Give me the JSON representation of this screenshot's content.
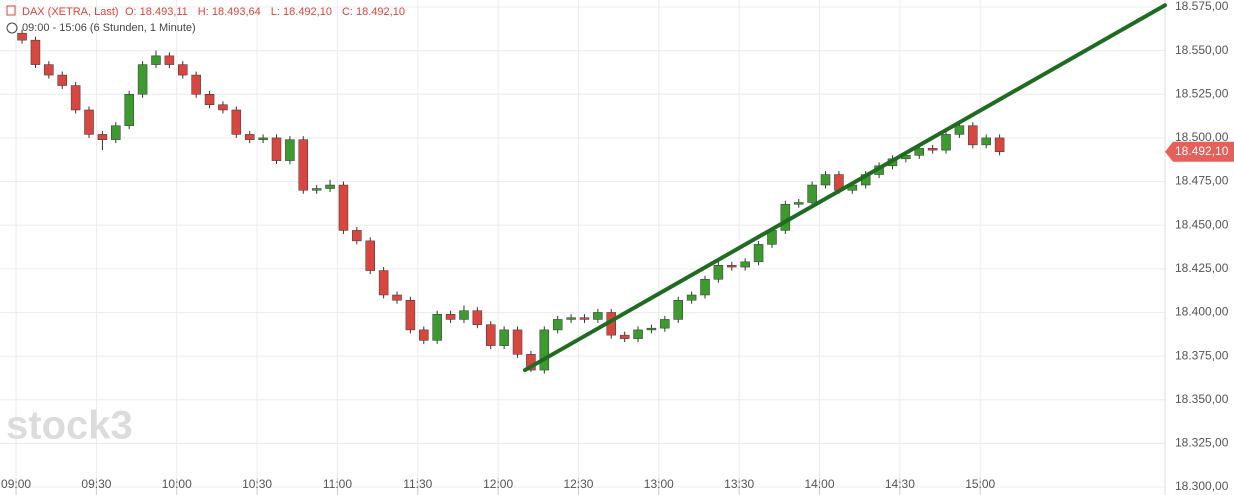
{
  "chart_data": {
    "type": "candlestick",
    "title": "DAX (XETRA, Last)",
    "ohlc_header": [
      "O: 18.493,11",
      "H: 18.493,64",
      "L: 18.492,10",
      "C: 18.492,10"
    ],
    "subtitle": "09:00 - 15:06  (6 Stunden, 1 Minute)",
    "watermark": "stock3",
    "up_color": "#3c9a2e",
    "down_color": "#d8473f",
    "x": [
      "09:00",
      "09:05",
      "09:10",
      "09:15",
      "09:20",
      "09:25",
      "09:30",
      "09:35",
      "09:40",
      "09:45",
      "09:50",
      "09:55",
      "10:00",
      "10:05",
      "10:10",
      "10:15",
      "10:20",
      "10:25",
      "10:30",
      "10:35",
      "10:40",
      "10:45",
      "10:50",
      "10:55",
      "11:00",
      "11:05",
      "11:10",
      "11:15",
      "11:20",
      "11:25",
      "11:30",
      "11:35",
      "11:40",
      "11:45",
      "11:50",
      "11:55",
      "12:00",
      "12:05",
      "12:10",
      "12:15",
      "12:20",
      "12:25",
      "12:30",
      "12:35",
      "12:40",
      "12:45",
      "12:50",
      "12:55",
      "13:00",
      "13:05",
      "13:10",
      "13:15",
      "13:20",
      "13:25",
      "13:30",
      "13:35",
      "13:40",
      "13:45",
      "13:50",
      "13:55",
      "14:00",
      "14:05",
      "14:10",
      "14:15",
      "14:20",
      "14:25",
      "14:30",
      "14:35",
      "14:40",
      "14:45",
      "14:50",
      "14:55",
      "15:00",
      "15:05"
    ],
    "open": [
      18560,
      18556,
      18542,
      18536,
      18530,
      18516,
      18502,
      18499,
      18507,
      18525,
      18542,
      18547,
      18542,
      18536,
      18525,
      18519,
      18516,
      18502,
      18499,
      18500,
      18487,
      18499,
      18470,
      18471,
      18473,
      18447,
      18441,
      18424,
      18410,
      18407,
      18390,
      18384,
      18399,
      18396,
      18401,
      18393,
      18381,
      18390,
      18376,
      18367,
      18390,
      18396,
      18397,
      18396,
      18400,
      18387,
      18385,
      18390,
      18391,
      18396,
      18407,
      18410,
      18419,
      18427,
      18426,
      18429,
      18439,
      18447,
      18462,
      18463,
      18473,
      18479,
      18470,
      18473,
      18479,
      18484,
      18488,
      18490,
      18494,
      18493,
      18502,
      18507,
      18496,
      18500
    ],
    "high": [
      18562,
      18558,
      18544,
      18538,
      18532,
      18518,
      18504,
      18509,
      18527,
      18544,
      18550,
      18549,
      18544,
      18538,
      18527,
      18521,
      18518,
      18504,
      18502,
      18502,
      18501,
      18501,
      18473,
      18476,
      18475,
      18449,
      18443,
      18426,
      18412,
      18409,
      18392,
      18401,
      18401,
      18404,
      18403,
      18395,
      18392,
      18392,
      18378,
      18392,
      18398,
      18399,
      18399,
      18402,
      18402,
      18389,
      18392,
      18393,
      18398,
      18409,
      18412,
      18421,
      18429,
      18429,
      18431,
      18441,
      18449,
      18464,
      18465,
      18475,
      18481,
      18481,
      18475,
      18481,
      18486,
      18490,
      18492,
      18496,
      18496,
      18504,
      18510,
      18509,
      18502,
      18502
    ],
    "low": [
      18554,
      18540,
      18534,
      18528,
      18514,
      18500,
      18493,
      18497,
      18505,
      18523,
      18540,
      18540,
      18534,
      18523,
      18517,
      18514,
      18500,
      18497,
      18497,
      18485,
      18485,
      18468,
      18468,
      18469,
      18445,
      18439,
      18422,
      18408,
      18405,
      18388,
      18382,
      18382,
      18394,
      18394,
      18391,
      18379,
      18379,
      18374,
      18366,
      18365,
      18388,
      18394,
      18394,
      18394,
      18385,
      18383,
      18383,
      18388,
      18389,
      18394,
      18405,
      18408,
      18417,
      18424,
      18424,
      18427,
      18437,
      18445,
      18460,
      18461,
      18471,
      18468,
      18468,
      18471,
      18477,
      18482,
      18486,
      18488,
      18491,
      18491,
      18500,
      18494,
      18494,
      18490
    ],
    "close": [
      18556,
      18542,
      18536,
      18530,
      18516,
      18502,
      18499,
      18507,
      18525,
      18542,
      18547,
      18542,
      18536,
      18525,
      18519,
      18516,
      18502,
      18499,
      18500,
      18487,
      18499,
      18470,
      18471,
      18473,
      18447,
      18441,
      18424,
      18410,
      18407,
      18390,
      18384,
      18399,
      18396,
      18401,
      18393,
      18381,
      18390,
      18376,
      18367,
      18390,
      18396,
      18397,
      18396,
      18400,
      18387,
      18385,
      18390,
      18391,
      18396,
      18407,
      18410,
      18419,
      18427,
      18426,
      18429,
      18439,
      18447,
      18462,
      18463,
      18473,
      18479,
      18470,
      18473,
      18479,
      18484,
      18488,
      18490,
      18494,
      18493,
      18502,
      18507,
      18496,
      18500,
      18492.1
    ],
    "trendline": {
      "color": "#1f6b22",
      "x": [
        "12:10",
        "16:09"
      ],
      "values": [
        18367,
        18576
      ]
    },
    "last_price": {
      "value": 18492.1,
      "label": "18.492,10",
      "color": "#e5605a"
    },
    "xlim": [
      "08:54",
      "16:09"
    ],
    "xticks": [
      "09:00",
      "09:30",
      "10:00",
      "10:30",
      "11:00",
      "11:30",
      "12:00",
      "12:30",
      "13:00",
      "13:30",
      "14:00",
      "14:30",
      "15:00"
    ],
    "ylim": [
      18300,
      18577
    ],
    "yticks": [
      {
        "value": 18300,
        "label": "18.300,00"
      },
      {
        "value": 18325,
        "label": "18.325,00"
      },
      {
        "value": 18350,
        "label": "18.350,00"
      },
      {
        "value": 18375,
        "label": "18.375,00"
      },
      {
        "value": 18400,
        "label": "18.400,00"
      },
      {
        "value": 18425,
        "label": "18.425,00"
      },
      {
        "value": 18450,
        "label": "18.450,00"
      },
      {
        "value": 18475,
        "label": "18.475,00"
      },
      {
        "value": 18500,
        "label": "18.500,00"
      },
      {
        "value": 18525,
        "label": "18.525,00"
      },
      {
        "value": 18550,
        "label": "18.550,00"
      },
      {
        "value": 18575,
        "label": "18.575,00"
      }
    ],
    "grid": true
  }
}
